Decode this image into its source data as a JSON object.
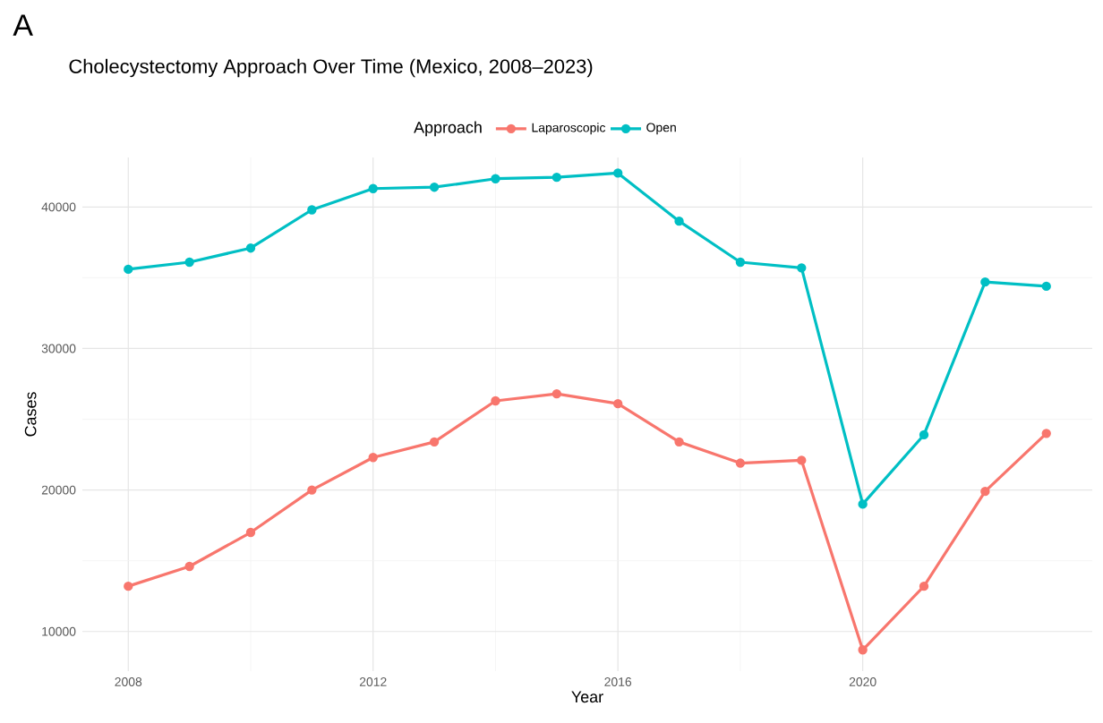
{
  "chart_data": {
    "type": "line",
    "title": "Cholecystectomy Approach Over Time (Mexico, 2008–2023)",
    "xlabel": "Year",
    "ylabel": "Cases",
    "legend_title": "Approach",
    "annotations": [
      "A"
    ],
    "x": [
      2008,
      2009,
      2010,
      2011,
      2012,
      2013,
      2014,
      2015,
      2016,
      2017,
      2018,
      2019,
      2020,
      2021,
      2022,
      2023
    ],
    "series": [
      {
        "name": "Laparoscopic",
        "color": "#f8766d",
        "values": [
          13200,
          14600,
          17000,
          20000,
          22300,
          23400,
          26300,
          26800,
          26100,
          23400,
          21900,
          22100,
          8700,
          13200,
          19900,
          24000
        ]
      },
      {
        "name": "Open",
        "color": "#00bfc4",
        "values": [
          35600,
          36100,
          37100,
          39800,
          41300,
          41400,
          42000,
          42100,
          42400,
          39000,
          36100,
          35700,
          19000,
          23900,
          34700,
          34400
        ]
      }
    ],
    "xlim": [
      2007.25,
      2023.75
    ],
    "ylim": [
      7200,
      43500
    ],
    "xticks": [
      2008,
      2012,
      2016,
      2020
    ],
    "yticks": [
      10000,
      20000,
      30000,
      40000
    ],
    "grid": true,
    "legend": "top",
    "marker": "circle",
    "line_style": "solid"
  }
}
